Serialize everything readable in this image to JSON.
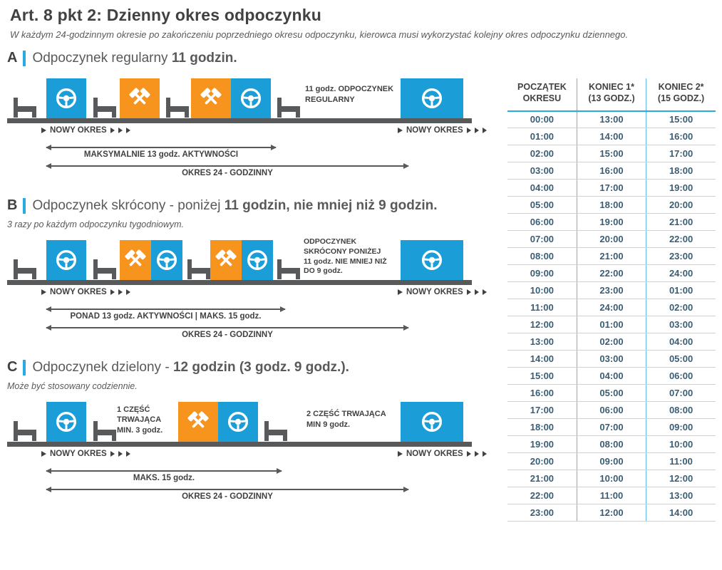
{
  "header": {
    "title": "Art. 8 pkt 2: Dzienny okres odpoczynku",
    "subtitle": "W każdym 24-godzinnym okresie po zakończeniu poprzedniego okresu odpoczynku, kierowca musi wykorzystać kolejny okres odpoczynku dziennego."
  },
  "labels": {
    "new_period": "NOWY OKRES"
  },
  "icons": {
    "steering-wheel-icon": "white steering wheel on colored box",
    "hammers-icon": "white crossed hammers on orange box",
    "bed-icon": "dark gray bed side-view",
    "play-icon": "small right-pointing triangle"
  },
  "colors": {
    "blue": "#1b9ed8",
    "orange": "#f7941e",
    "dark_gray": "#58595b",
    "accent_blue": "#29abe2",
    "table_time_text": "#3a5d74"
  },
  "sections": {
    "a": {
      "letter": "A",
      "title_pre": "Odpoczynek regularny ",
      "title_bold": "11 godzin.",
      "rest_label": "11 godz. ODPOCZYNEK\nREGULARNY",
      "arrow1": "MAKSYMALNIE 13 godz. AKTYWNOŚCI",
      "arrow2": "OKRES 24 - GODZINNY",
      "sequence": [
        "bed",
        "drive",
        "bed",
        "work",
        "bed",
        "work",
        "drive",
        "bed",
        "rest-label",
        "drive"
      ]
    },
    "b": {
      "letter": "B",
      "title_pre": "Odpoczynek skrócony - poniżej ",
      "title_bold": "11 godzin, nie mniej niż 9 godzin.",
      "subtitle": "3 razy po każdym odpoczynku tygodniowym.",
      "rest_label": "ODPOCZYNEK\nSKRÓCONY PONIŻEJ\n11 godz. NIE MNIEJ NIŻ\nDO 9 godz.",
      "arrow1": "PONAD 13 godz. AKTYWNOŚCI | MAKS. 15 godz.",
      "arrow2": "OKRES 24 - GODZINNY",
      "sequence": [
        "bed",
        "drive",
        "bed",
        "work",
        "drive",
        "bed",
        "work",
        "drive",
        "bed",
        "rest-label",
        "drive"
      ]
    },
    "c": {
      "letter": "C",
      "title_pre": "Odpoczynek dzielony - ",
      "title_bold": "12 godzin (3 godz. 9 godz.).",
      "subtitle": "Może być stosowany codziennie.",
      "part1_label": "1 CZĘŚĆ\nTRWAJĄCA\nMIN. 3 godz.",
      "part2_label": "2 CZĘŚĆ TRWAJĄCA\nMIN 9 godz.",
      "arrow1": "MAKS. 15 godz.",
      "arrow2": "OKRES 24 - GODZINNY",
      "sequence": [
        "bed",
        "drive",
        "bed",
        "part1-label",
        "work",
        "drive",
        "bed",
        "part2-label",
        "drive"
      ]
    }
  },
  "table": {
    "headers": [
      "POCZĄTEK\nOKRESU",
      "KONIEC 1*\n(13 GODZ.)",
      "KONIEC 2*\n(15 GODZ.)"
    ],
    "rows": [
      [
        "00:00",
        "13:00",
        "15:00"
      ],
      [
        "01:00",
        "14:00",
        "16:00"
      ],
      [
        "02:00",
        "15:00",
        "17:00"
      ],
      [
        "03:00",
        "16:00",
        "18:00"
      ],
      [
        "04:00",
        "17:00",
        "19:00"
      ],
      [
        "05:00",
        "18:00",
        "20:00"
      ],
      [
        "06:00",
        "19:00",
        "21:00"
      ],
      [
        "07:00",
        "20:00",
        "22:00"
      ],
      [
        "08:00",
        "21:00",
        "23:00"
      ],
      [
        "09:00",
        "22:00",
        "24:00"
      ],
      [
        "10:00",
        "23:00",
        "01:00"
      ],
      [
        "11:00",
        "24:00",
        "02:00"
      ],
      [
        "12:00",
        "01:00",
        "03:00"
      ],
      [
        "13:00",
        "02:00",
        "04:00"
      ],
      [
        "14:00",
        "03:00",
        "05:00"
      ],
      [
        "15:00",
        "04:00",
        "06:00"
      ],
      [
        "16:00",
        "05:00",
        "07:00"
      ],
      [
        "17:00",
        "06:00",
        "08:00"
      ],
      [
        "18:00",
        "07:00",
        "09:00"
      ],
      [
        "19:00",
        "08:00",
        "10:00"
      ],
      [
        "20:00",
        "09:00",
        "11:00"
      ],
      [
        "21:00",
        "10:00",
        "12:00"
      ],
      [
        "22:00",
        "11:00",
        "13:00"
      ],
      [
        "23:00",
        "12:00",
        "14:00"
      ]
    ]
  }
}
